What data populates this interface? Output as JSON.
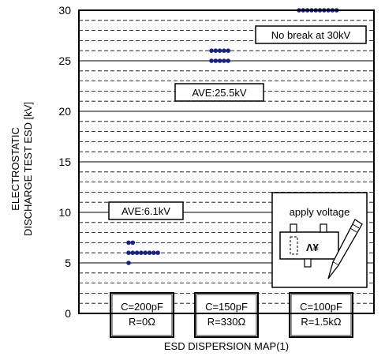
{
  "chart_data": {
    "type": "scatter",
    "title": "",
    "xlabel": "ESD DISPERSION MAP(1)",
    "ylabel_lines": [
      "ELECTROSTATIC",
      "DISCHARGE TEST ESD [kV]"
    ],
    "ylim": [
      0,
      30
    ],
    "yticks": [
      0,
      5,
      10,
      15,
      20,
      25,
      30
    ],
    "minor_grid_step": 1,
    "grid": true,
    "point_color": "#1a237e",
    "groups": [
      {
        "condition": [
          "C=200pF",
          "R=0Ω"
        ],
        "annotation": "AVE:6.1kV",
        "points": [
          {
            "y": 7,
            "count": 2
          },
          {
            "y": 6,
            "count": 8
          },
          {
            "y": 5,
            "count": 1
          }
        ]
      },
      {
        "condition": [
          "C=150pF",
          "R=330Ω"
        ],
        "annotation": "AVE:25.5kV",
        "points": [
          {
            "y": 26,
            "count": 5
          },
          {
            "y": 25,
            "count": 5
          }
        ]
      },
      {
        "condition": [
          "C=100pF",
          "R=1.5kΩ"
        ],
        "annotation": "No break at 30kV",
        "points": [
          {
            "y": 30,
            "count": 10
          }
        ]
      }
    ],
    "inset": {
      "label": "apply voltage",
      "chip_text": "Λ¥"
    }
  }
}
